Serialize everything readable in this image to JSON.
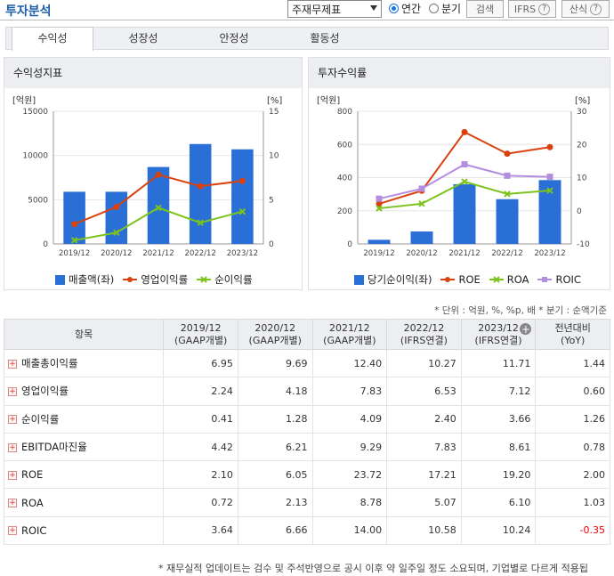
{
  "header": {
    "title": "투자분석",
    "select_value": "주재무제표",
    "radio_annual": "연간",
    "radio_quarter": "분기",
    "search_label": "검색",
    "ifrs_label": "IFRS",
    "formula_label": "산식",
    "help": "?"
  },
  "tabs": [
    "수익성",
    "성장성",
    "안정성",
    "활동성"
  ],
  "left_panel": {
    "title": "수익성지표",
    "unit_left": "[억원]",
    "unit_right": "[%]"
  },
  "right_panel": {
    "title": "투자수익률",
    "unit_left": "[억원]",
    "unit_right": "[%]"
  },
  "chart_data": [
    {
      "type": "bar",
      "title": "수익성지표",
      "categories": [
        "2019/12",
        "2020/12",
        "2021/12",
        "2022/12",
        "2023/12"
      ],
      "ylim": [
        0,
        15000
      ],
      "yticks": [
        "0",
        "5000",
        "10000",
        "15000"
      ],
      "y2lim": [
        0,
        15
      ],
      "y2ticks": [
        "0",
        "5",
        "10",
        "15"
      ],
      "series": [
        {
          "name": "매출액(좌)",
          "kind": "bar",
          "axis": "left",
          "color": "#2a6fd6",
          "values": [
            5900,
            5900,
            8700,
            11300,
            10700
          ]
        },
        {
          "name": "영업이익률",
          "kind": "line",
          "axis": "right",
          "color": "#d9420f",
          "values": [
            2.24,
            4.18,
            7.83,
            6.53,
            7.12
          ]
        },
        {
          "name": "순이익률",
          "kind": "line",
          "axis": "right",
          "color": "#7cc41d",
          "values": [
            0.41,
            1.28,
            4.09,
            2.4,
            3.66
          ]
        }
      ]
    },
    {
      "type": "bar",
      "title": "투자수익률",
      "categories": [
        "2019/12",
        "2020/12",
        "2021/12",
        "2022/12",
        "2023/12"
      ],
      "ylim": [
        0,
        800
      ],
      "yticks": [
        "0",
        "200",
        "400",
        "600",
        "800"
      ],
      "y2lim": [
        -10,
        30
      ],
      "y2ticks": [
        "-10",
        "0",
        "10",
        "20",
        "30"
      ],
      "series": [
        {
          "name": "당기순이익(좌)",
          "kind": "bar",
          "axis": "left",
          "color": "#2a6fd6",
          "values": [
            25,
            75,
            360,
            270,
            385
          ]
        },
        {
          "name": "ROE",
          "kind": "line",
          "axis": "right",
          "color": "#d9420f",
          "values": [
            2.1,
            6.05,
            23.72,
            17.21,
            19.2
          ]
        },
        {
          "name": "ROA",
          "kind": "line",
          "axis": "right",
          "color": "#7cc41d",
          "values": [
            0.72,
            2.13,
            8.78,
            5.07,
            6.1
          ]
        },
        {
          "name": "ROIC",
          "kind": "line",
          "axis": "right",
          "color": "#b38ee0",
          "values": [
            3.64,
            6.66,
            14.0,
            10.58,
            10.24
          ]
        }
      ]
    }
  ],
  "unit_note": "* 단위 : 억원, %, %p, 배    * 분기 : 순액기준",
  "table": {
    "headers": [
      [
        "항목",
        ""
      ],
      [
        "2019/12",
        "(GAAP개별)"
      ],
      [
        "2020/12",
        "(GAAP개별)"
      ],
      [
        "2021/12",
        "(GAAP개별)"
      ],
      [
        "2022/12",
        "(IFRS연결)"
      ],
      [
        "2023/12",
        "(IFRS연결)"
      ],
      [
        "전년대비",
        "(YoY)"
      ]
    ],
    "rows": [
      {
        "label": "매출총이익률",
        "values": [
          "6.95",
          "9.69",
          "12.40",
          "10.27",
          "11.71",
          "1.44"
        ]
      },
      {
        "label": "영업이익률",
        "values": [
          "2.24",
          "4.18",
          "7.83",
          "6.53",
          "7.12",
          "0.60"
        ]
      },
      {
        "label": "순이익률",
        "values": [
          "0.41",
          "1.28",
          "4.09",
          "2.40",
          "3.66",
          "1.26"
        ]
      },
      {
        "label": "EBITDA마진율",
        "values": [
          "4.42",
          "6.21",
          "9.29",
          "7.83",
          "8.61",
          "0.78"
        ]
      },
      {
        "label": "ROE",
        "values": [
          "2.10",
          "6.05",
          "23.72",
          "17.21",
          "19.20",
          "2.00"
        ]
      },
      {
        "label": "ROA",
        "values": [
          "0.72",
          "2.13",
          "8.78",
          "5.07",
          "6.10",
          "1.03"
        ]
      },
      {
        "label": "ROIC",
        "values": [
          "3.64",
          "6.66",
          "14.00",
          "10.58",
          "10.24",
          "-0.35"
        ]
      }
    ]
  },
  "footnote": "* 재무실적 업데이트는 검수 및 주석반영으로 공시 이후 약 일주일 정도 소요되며, 기업별로 다르게 적용됩"
}
